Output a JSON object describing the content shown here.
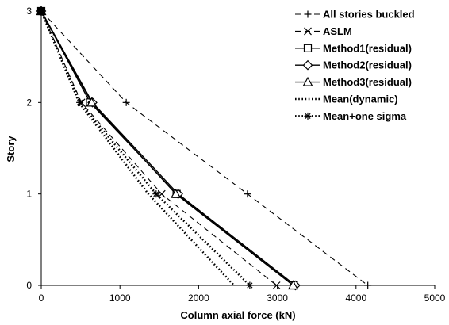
{
  "chart_data": {
    "type": "line",
    "title": "",
    "xlabel": "Column axial force (kN)",
    "ylabel": "Story",
    "xlim": [
      0,
      5000
    ],
    "ylim": [
      0,
      3
    ],
    "xticks": [
      0,
      1000,
      2000,
      3000,
      4000,
      5000
    ],
    "yticks": [
      0,
      1,
      2,
      3
    ],
    "grid": false,
    "legend_position": "top-right",
    "series": [
      {
        "name": "All stories buckled",
        "line": "dashed",
        "marker": "plus",
        "points": [
          [
            0,
            3
          ],
          [
            1080,
            2
          ],
          [
            2620,
            1
          ],
          [
            4150,
            0
          ]
        ]
      },
      {
        "name": "ASLM",
        "line": "dashed",
        "marker": "x",
        "points": [
          [
            0,
            3
          ],
          [
            510,
            2
          ],
          [
            1530,
            1
          ],
          [
            2990,
            0
          ]
        ]
      },
      {
        "name": "Method1(residual)",
        "line": "solid",
        "marker": "square",
        "points": [
          [
            0,
            3
          ],
          [
            620,
            2
          ],
          [
            1720,
            1
          ],
          [
            3210,
            0
          ]
        ]
      },
      {
        "name": "Method2(residual)",
        "line": "solid",
        "marker": "diamond",
        "points": [
          [
            0,
            3
          ],
          [
            650,
            2
          ],
          [
            1740,
            1
          ],
          [
            3230,
            0
          ]
        ]
      },
      {
        "name": "Method3(residual)",
        "line": "solid",
        "marker": "triangle",
        "points": [
          [
            0,
            3
          ],
          [
            640,
            2
          ],
          [
            1710,
            1
          ],
          [
            3200,
            0
          ]
        ]
      },
      {
        "name": "Mean(dynamic)",
        "line": "dotted",
        "marker": "none",
        "points": [
          [
            0,
            3
          ],
          [
            480,
            2
          ],
          [
            1360,
            1
          ],
          [
            2450,
            0
          ]
        ]
      },
      {
        "name": "Mean+one sigma",
        "line": "dotted",
        "marker": "asterisk",
        "points": [
          [
            0,
            3
          ],
          [
            490,
            2
          ],
          [
            1460,
            1
          ],
          [
            2650,
            0
          ]
        ]
      }
    ]
  }
}
